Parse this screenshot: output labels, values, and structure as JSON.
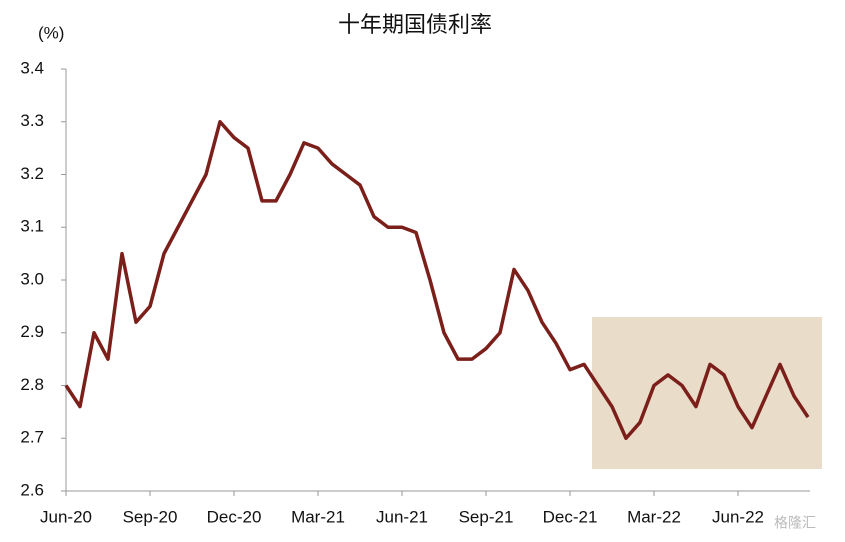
{
  "chart_data": {
    "type": "line",
    "title": "十年期国债利率",
    "y_label": "(%)",
    "categories": [
      "Jun-20",
      null,
      null,
      null,
      null,
      null,
      "Sep-20",
      null,
      null,
      null,
      null,
      null,
      "Dec-20",
      null,
      null,
      null,
      null,
      null,
      "Mar-21",
      null,
      null,
      null,
      null,
      null,
      "Jun-21",
      null,
      null,
      null,
      null,
      null,
      "Sep-21",
      null,
      null,
      null,
      null,
      null,
      "Dec-21",
      null,
      null,
      null,
      null,
      null,
      "Mar-22",
      null,
      null,
      null,
      null,
      null,
      "Jun-22",
      null,
      null,
      null,
      null,
      null
    ],
    "series": [
      {
        "name": "十年期国债利率",
        "color": "#7b1f1a",
        "values": [
          2.8,
          2.76,
          2.9,
          2.85,
          3.05,
          2.92,
          2.95,
          3.05,
          3.1,
          3.15,
          3.2,
          3.3,
          3.27,
          3.25,
          3.15,
          3.15,
          3.2,
          3.26,
          3.25,
          3.22,
          3.2,
          3.18,
          3.12,
          3.1,
          3.1,
          3.09,
          3.0,
          2.9,
          2.85,
          2.85,
          2.87,
          2.9,
          3.02,
          2.98,
          2.92,
          2.88,
          2.83,
          2.84,
          2.8,
          2.76,
          2.7,
          2.73,
          2.8,
          2.82,
          2.8,
          2.76,
          2.84,
          2.82,
          2.76,
          2.72,
          2.78,
          2.84,
          2.78,
          2.74
        ]
      }
    ],
    "ylim": [
      2.6,
      3.4
    ],
    "yticks": [
      2.6,
      2.7,
      2.8,
      2.9,
      {
        "value": 3,
        "label": "3.0"
      },
      3.1,
      3.2,
      3.3,
      3.4
    ],
    "watermark": "格隆汇"
  }
}
